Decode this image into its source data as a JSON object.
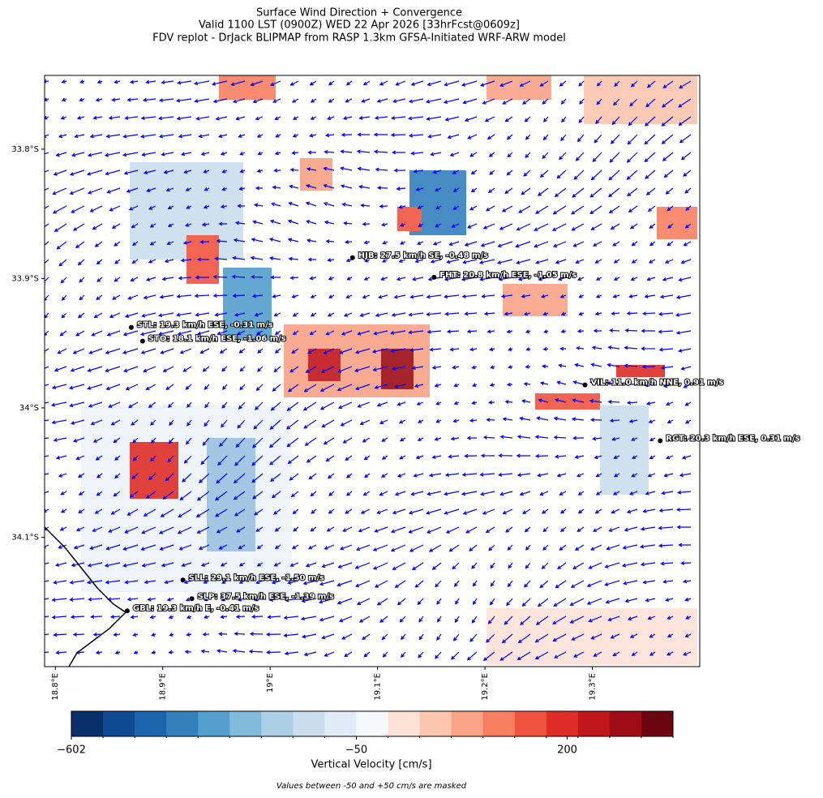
{
  "header": {
    "title_lines": [
      "Surface Wind Direction + Convergence",
      "Valid 1100 LST (0900Z) WED 22 Apr 2026 [33hrFcst@0609z]",
      "FDV replot - DrJack BLIPMAP from RASP 1.3km GFSA-Initiated WRF-ARW model"
    ]
  },
  "map": {
    "xlim": [
      18.79,
      19.4
    ],
    "ylim": [
      -33.743,
      -34.2
    ],
    "xticks": [
      {
        "value": 18.8,
        "label": "18.8°E"
      },
      {
        "value": 18.9,
        "label": "18.9°E"
      },
      {
        "value": 19.0,
        "label": "19°E"
      },
      {
        "value": 19.1,
        "label": "19.1°E"
      },
      {
        "value": 19.2,
        "label": "19.2°E"
      },
      {
        "value": 19.3,
        "label": "19.3°E"
      }
    ],
    "yticks": [
      {
        "value": -33.8,
        "label": "33.8°S"
      },
      {
        "value": -33.9,
        "label": "33.9°S"
      },
      {
        "value": -34.0,
        "label": "34°S"
      },
      {
        "value": -34.1,
        "label": "34.1°S"
      }
    ],
    "stations": [
      {
        "label": "HJB: 27.5 km/h SE, -0.48 m/s",
        "lon": 19.0767,
        "lat": -33.8839
      },
      {
        "label": "FHT: 20.8 km/h ESE, -1.05 m/s",
        "lon": 19.1526,
        "lat": -33.899
      },
      {
        "label": "STL: 19.3 km/h ESE, -0.31 m/s",
        "lon": 18.8707,
        "lat": -33.9378
      },
      {
        "label": "STO: 18.1 km/h ESE, -1.06 m/s",
        "lon": 18.8812,
        "lat": -33.9484
      },
      {
        "label": "VIL: 11.0 km/h NNE, 0.91 m/s",
        "lon": 19.2932,
        "lat": -33.9822
      },
      {
        "label": "RGT: 20.3 km/h ESE, 0.31 m/s",
        "lon": 19.3632,
        "lat": -34.0254
      },
      {
        "label": "SLL: 29.1 km/h ESE, -1.50 m/s",
        "lon": 18.9188,
        "lat": -34.1331
      },
      {
        "label": "SLP: 37.5 km/h ESE, -1.39 m/s",
        "lon": 18.9271,
        "lat": -34.1475
      },
      {
        "label": "GBL: 19.3 km/h E, -0.41 m/s",
        "lon": 18.8669,
        "lat": -34.1569
      }
    ]
  },
  "colorbar": {
    "label": "Vertical Velocity [cm/s]",
    "boundaries": [
      -602,
      -541,
      -480,
      -418,
      -357,
      -296,
      -234,
      -173,
      -112,
      -50,
      -12,
      25,
      63,
      100,
      138,
      175,
      213,
      250,
      288,
      326
    ],
    "colors": [
      "#0b2f6b",
      "#0d4a91",
      "#1c65ac",
      "#3380bd",
      "#549ecd",
      "#82badb",
      "#adcfe5",
      "#cadded",
      "#e0ebf5",
      "#f6f9fc",
      "#fde2d7",
      "#fbc5ae",
      "#f9a386",
      "#f77f61",
      "#f05440",
      "#de2d26",
      "#c1161c",
      "#9c0d16",
      "#6b0610"
    ],
    "ticks": [
      {
        "value": -602,
        "label": "−602"
      },
      {
        "value": -50,
        "label": "−50"
      },
      {
        "value": 200,
        "label": "200"
      }
    ]
  },
  "note": "Values between -50 and +50 cm/s are masked"
}
